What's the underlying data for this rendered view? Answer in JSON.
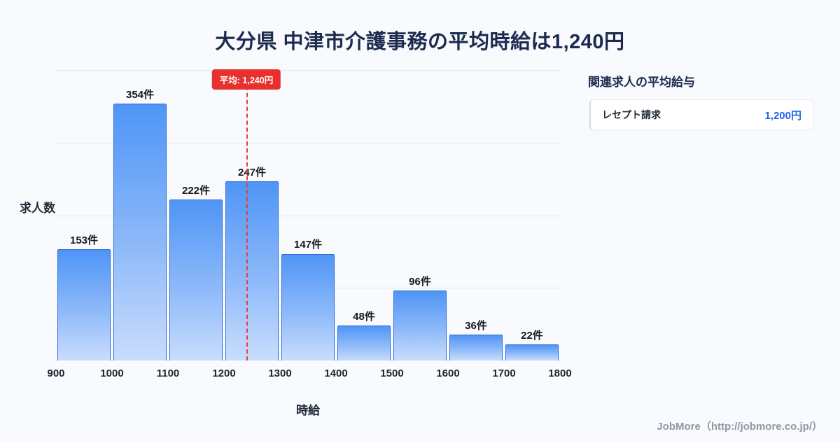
{
  "title": "大分県 中津市介護事務の平均時給は1,240円",
  "chart_data": {
    "type": "bar",
    "subtype": "histogram",
    "x_edges": [
      900,
      1000,
      1100,
      1200,
      1300,
      1400,
      1500,
      1600,
      1700,
      1800
    ],
    "x_ticks": [
      "900",
      "1000",
      "1100",
      "1200",
      "1300",
      "1400",
      "1500",
      "1600",
      "1700",
      "1800"
    ],
    "categories": [
      "900-1000",
      "1000-1100",
      "1100-1200",
      "1200-1300",
      "1300-1400",
      "1400-1500",
      "1500-1600",
      "1600-1700",
      "1700-1800"
    ],
    "values": [
      153,
      354,
      222,
      247,
      147,
      48,
      96,
      36,
      22
    ],
    "bar_labels": [
      "153件",
      "354件",
      "222件",
      "247件",
      "147件",
      "48件",
      "96件",
      "36件",
      "22件"
    ],
    "xlabel": "時給",
    "ylabel": "求人数",
    "xlim": [
      900,
      1800
    ],
    "ylim": [
      0,
      400
    ],
    "grid_values": [
      100,
      200,
      300,
      400
    ],
    "grid": "horizontal",
    "average_value": 1240,
    "average_label": "平均: 1,240円",
    "legend_position": "none"
  },
  "side_panel": {
    "heading": "関連求人の平均給与",
    "items": [
      {
        "label": "レセプト請求",
        "value": "1,200円"
      }
    ]
  },
  "footer": {
    "credit": "JobMore（http://jobmore.co.jp/）"
  },
  "colors": {
    "background": "#f8fafd",
    "title_text": "#1b2a4e",
    "bar_fill_top": "#4f95f6",
    "bar_fill_bottom": "#c9ddfc",
    "bar_border": "#2f6bd8",
    "average_line": "#e8312f",
    "value_accent": "#2563eb",
    "gridline": "#e4e8ef",
    "footer_text": "#8e97a3"
  }
}
